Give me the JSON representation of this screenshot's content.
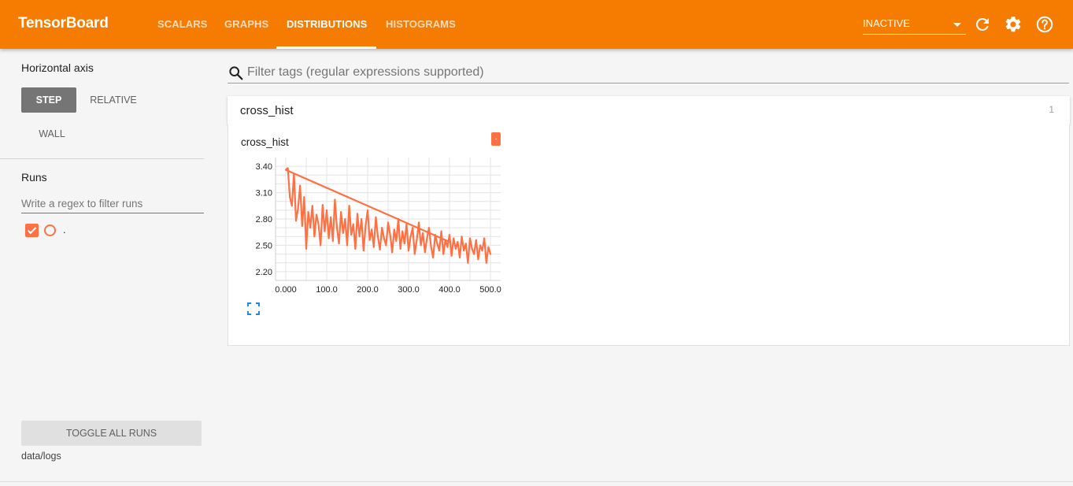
{
  "app": {
    "title": "TensorBoard",
    "tabs": [
      {
        "label": "SCALARS",
        "active": false
      },
      {
        "label": "GRAPHS",
        "active": false
      },
      {
        "label": "DISTRIBUTIONS",
        "active": true
      },
      {
        "label": "HISTOGRAMS",
        "active": false
      }
    ],
    "status_select": "INACTIVE",
    "icons": [
      "refresh-icon",
      "settings-icon",
      "help-icon"
    ],
    "accent_color": "#f57c00"
  },
  "sidebar": {
    "horizontal_axis_label": "Horizontal axis",
    "axis_buttons": [
      {
        "label": "STEP",
        "selected": true
      },
      {
        "label": "RELATIVE",
        "selected": false
      },
      {
        "label": "WALL",
        "selected": false
      }
    ],
    "runs_label": "Runs",
    "runs_filter_placeholder": "Write a regex to filter runs",
    "runs": [
      {
        "name": ".",
        "checked": true,
        "color": "#ff7043"
      }
    ],
    "toggle_all_label": "TOGGLE ALL RUNS",
    "log_dir": "data/logs"
  },
  "main": {
    "filter_placeholder": "Filter tags (regular expressions supported)",
    "category": {
      "name": "cross_hist",
      "count": "1"
    },
    "card": {
      "title": "cross_hist",
      "run_badge": "."
    }
  },
  "chart_data": {
    "type": "line",
    "title": "cross_hist",
    "series_color": "#ff7043",
    "x": [
      0,
      5,
      10,
      15,
      20,
      25,
      30,
      35,
      40,
      45,
      50,
      55,
      60,
      65,
      70,
      75,
      80,
      85,
      90,
      95,
      100,
      105,
      110,
      115,
      120,
      125,
      130,
      135,
      140,
      145,
      150,
      155,
      160,
      165,
      170,
      175,
      180,
      185,
      190,
      195,
      200,
      205,
      210,
      215,
      220,
      225,
      230,
      235,
      240,
      245,
      250,
      255,
      260,
      265,
      270,
      275,
      280,
      285,
      290,
      295,
      300,
      305,
      310,
      315,
      320,
      325,
      330,
      335,
      340,
      345,
      350,
      355,
      360,
      365,
      370,
      375,
      380,
      385,
      390,
      395,
      400,
      405,
      410,
      415,
      420,
      425,
      430,
      435,
      440,
      445,
      450,
      455,
      460,
      465,
      470,
      475,
      480,
      485,
      490,
      495,
      500
    ],
    "y": [
      3.36,
      3.38,
      3.05,
      2.95,
      3.32,
      2.78,
      2.92,
      3.18,
      2.72,
      3.05,
      2.46,
      2.88,
      2.7,
      2.95,
      2.6,
      2.85,
      2.74,
      2.5,
      2.96,
      2.66,
      2.9,
      2.58,
      2.82,
      2.55,
      3.02,
      2.7,
      2.52,
      2.88,
      2.64,
      2.8,
      2.5,
      2.95,
      2.62,
      2.74,
      2.46,
      2.86,
      2.6,
      2.8,
      2.44,
      2.72,
      2.9,
      2.56,
      2.68,
      2.48,
      2.82,
      2.6,
      2.45,
      2.7,
      2.58,
      2.5,
      2.76,
      2.62,
      2.42,
      2.68,
      2.55,
      2.8,
      2.46,
      2.66,
      2.52,
      2.74,
      2.44,
      2.6,
      2.7,
      2.4,
      2.56,
      2.76,
      2.5,
      2.64,
      2.42,
      2.58,
      2.7,
      2.48,
      2.36,
      2.62,
      2.52,
      2.44,
      2.66,
      2.4,
      2.56,
      2.48,
      2.62,
      2.38,
      2.58,
      2.46,
      2.54,
      2.36,
      2.6,
      2.44,
      2.52,
      2.3,
      2.58,
      2.46,
      2.4,
      2.56,
      2.34,
      2.5,
      2.44,
      2.58,
      2.3,
      2.48,
      2.4
    ],
    "extra_line": {
      "x": [
        0,
        400
      ],
      "y": [
        3.36,
        2.54
      ]
    },
    "xlim": [
      -25,
      525
    ],
    "ylim": [
      2.1,
      3.5
    ],
    "xticks": [
      "0.000",
      "100.0",
      "200.0",
      "300.0",
      "400.0",
      "500.0"
    ],
    "xtick_values": [
      0,
      100,
      200,
      300,
      400,
      500
    ],
    "yticks": [
      "3.40",
      "3.10",
      "2.80",
      "2.50",
      "2.20"
    ],
    "ytick_values": [
      3.4,
      3.1,
      2.8,
      2.5,
      2.2
    ],
    "grid": true,
    "xlabel": "",
    "ylabel": ""
  }
}
